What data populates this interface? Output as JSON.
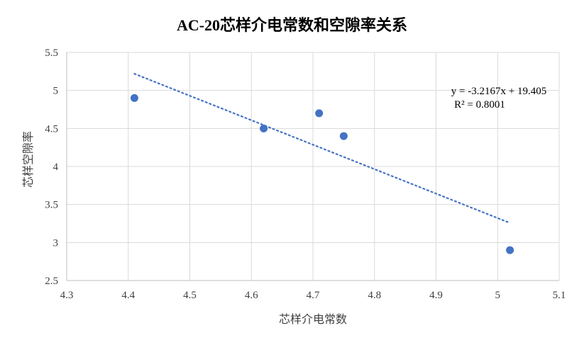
{
  "chart_data": {
    "type": "scatter",
    "title": "AC-20芯样介电常数和空隙率关系",
    "xlabel": "芯样介电常数",
    "ylabel": "芯样空隙率",
    "xlim": [
      4.3,
      5.1
    ],
    "ylim": [
      2.5,
      5.5
    ],
    "x_ticks": [
      "4.3",
      "4.4",
      "4.5",
      "4.6",
      "4.7",
      "4.8",
      "4.9",
      "5",
      "5.1"
    ],
    "y_ticks": [
      "2.5",
      "3",
      "3.5",
      "4",
      "4.5",
      "5",
      "5.5"
    ],
    "grid": true,
    "legend": "none",
    "series": [
      {
        "name": "芯样空隙率",
        "color": "#4472C4",
        "x": [
          4.41,
          4.62,
          4.71,
          4.75,
          5.02
        ],
        "y": [
          4.9,
          4.5,
          4.7,
          4.4,
          2.9
        ]
      }
    ],
    "trendline": {
      "type": "linear",
      "style": "dotted",
      "color": "#4472C4",
      "slope": -3.2167,
      "intercept": 19.405,
      "x_range": [
        4.41,
        5.02
      ],
      "equation": "y = -3.2167x + 19.405",
      "r_squared": "R² = 0.8001"
    }
  }
}
